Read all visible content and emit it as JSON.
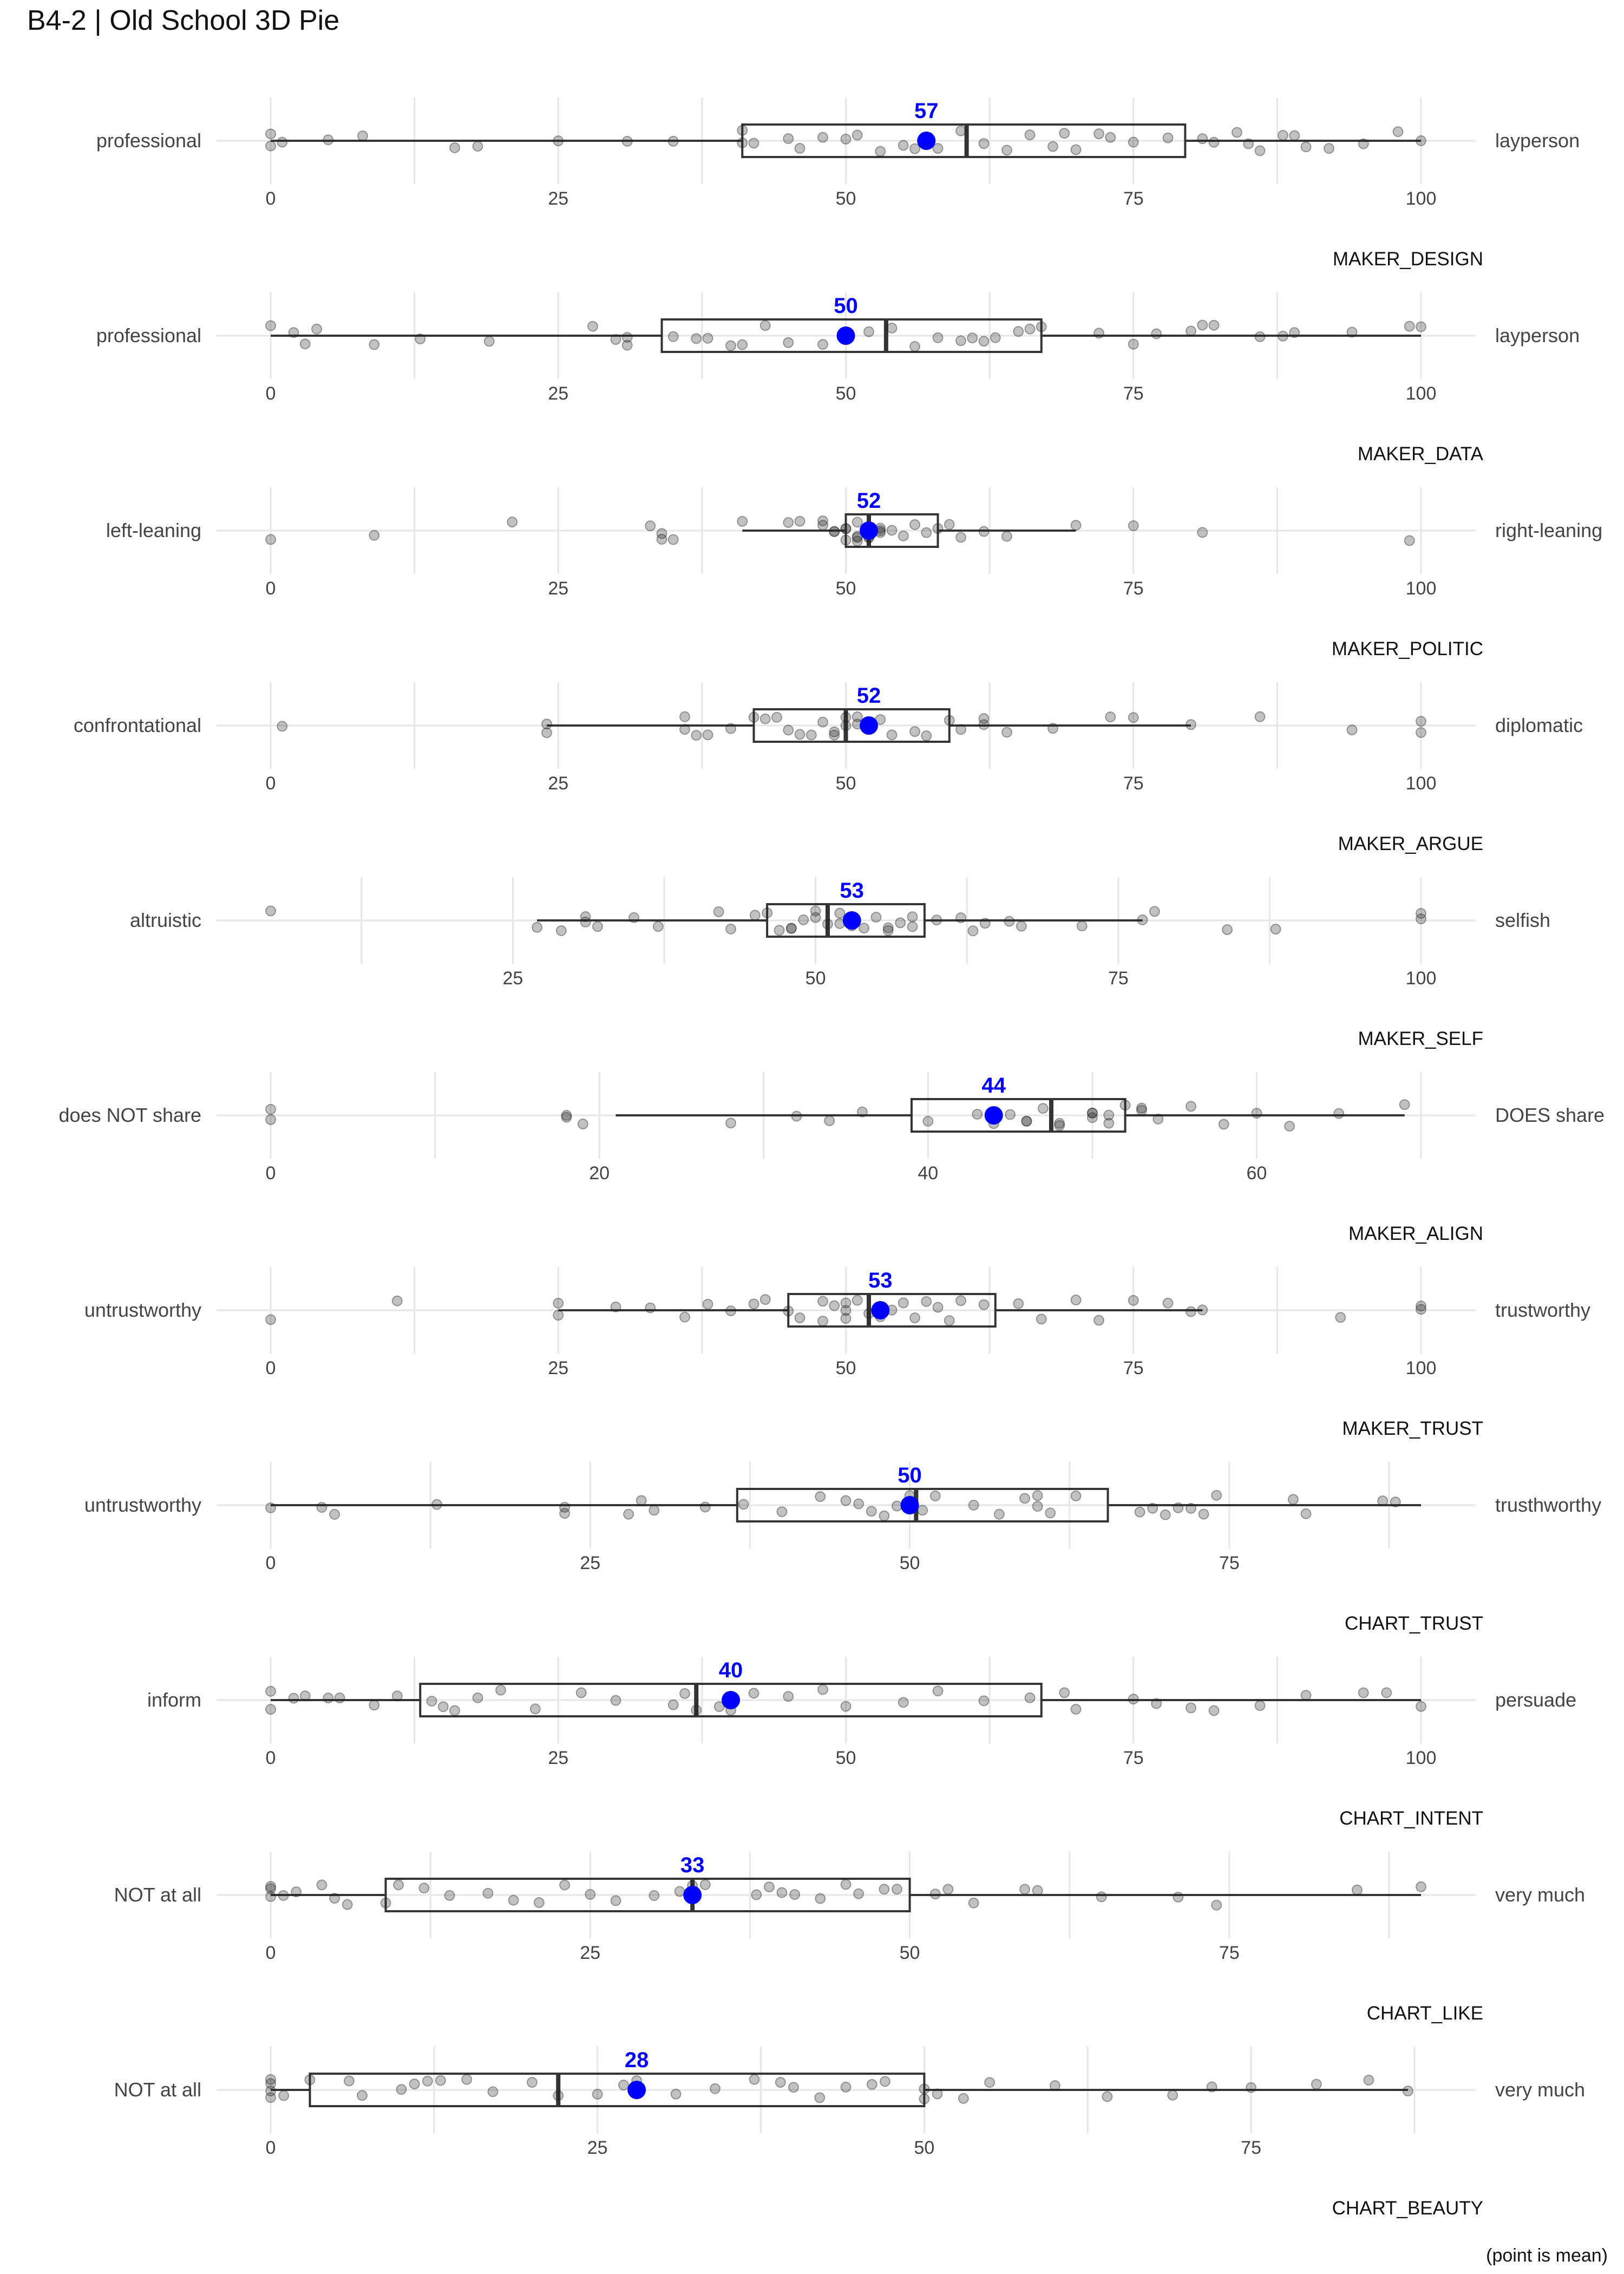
{
  "title": "B4-2 | Old School 3D Pie",
  "footnote": "(point is mean)",
  "colors": {
    "mean": "#0000ff",
    "box": "#333333",
    "point": "#222222",
    "grid": "#e6e6e6",
    "label": "#444444"
  },
  "chart_data": [
    {
      "type": "boxplot",
      "name": "MAKER_DESIGN",
      "left_label": "professional",
      "right_label": "layperson",
      "xlim": [
        0,
        100
      ],
      "ticks": [
        0,
        25,
        50,
        75,
        100
      ],
      "q1": 41,
      "median": 60.5,
      "q3": 79.5,
      "whisker_low": 0,
      "whisker_high": 100,
      "mean": 57,
      "mean_label": "57",
      "points": [
        0,
        0,
        1,
        5,
        8,
        16,
        18,
        25,
        31,
        35,
        41,
        41,
        42,
        45,
        46,
        48,
        50,
        51,
        53,
        55,
        56,
        58,
        60,
        62,
        64,
        66,
        68,
        69,
        70,
        72,
        73,
        75,
        78,
        81,
        82,
        84,
        85,
        86,
        88,
        89,
        90,
        92,
        95,
        98,
        100
      ]
    },
    {
      "type": "boxplot",
      "name": "MAKER_DATA",
      "left_label": "professional",
      "right_label": "layperson",
      "xlim": [
        0,
        100
      ],
      "ticks": [
        0,
        25,
        50,
        75,
        100
      ],
      "q1": 34,
      "median": 53.5,
      "q3": 67,
      "whisker_low": 0,
      "whisker_high": 100,
      "mean": 50,
      "mean_label": "50",
      "points": [
        0,
        2,
        3,
        4,
        9,
        13,
        19,
        28,
        30,
        31,
        31,
        35,
        37,
        38,
        40,
        41,
        43,
        45,
        48,
        52,
        54,
        56,
        58,
        60,
        61,
        62,
        63,
        65,
        66,
        67,
        72,
        75,
        77,
        80,
        81,
        82,
        86,
        88,
        89,
        94,
        99,
        100
      ]
    },
    {
      "type": "boxplot",
      "name": "MAKER_POLITIC",
      "left_label": "left-leaning",
      "right_label": "right-leaning",
      "xlim": [
        0,
        100
      ],
      "ticks": [
        0,
        25,
        50,
        75,
        100
      ],
      "q1": 50,
      "median": 52,
      "q3": 58,
      "whisker_low": 41,
      "whisker_high": 70,
      "mean": 52,
      "mean_label": "52",
      "points": [
        0,
        9,
        21,
        33,
        34,
        34,
        35,
        41,
        45,
        46,
        48,
        48,
        49,
        49,
        50,
        50,
        50,
        51,
        51,
        51,
        51,
        52,
        52,
        53,
        53,
        53,
        54,
        55,
        56,
        57,
        58,
        59,
        60,
        62,
        64,
        70,
        75,
        81,
        99
      ]
    },
    {
      "type": "boxplot",
      "name": "MAKER_ARGUE",
      "left_label": "confrontational",
      "right_label": "diplomatic",
      "xlim": [
        0,
        100
      ],
      "ticks": [
        0,
        25,
        50,
        75,
        100
      ],
      "q1": 42,
      "median": 50,
      "q3": 59,
      "whisker_low": 24,
      "whisker_high": 80,
      "mean": 52,
      "mean_label": "52",
      "points": [
        1,
        24,
        24,
        36,
        36,
        37,
        38,
        40,
        42,
        43,
        44,
        45,
        46,
        47,
        48,
        49,
        49,
        50,
        50,
        51,
        51,
        52,
        52,
        53,
        54,
        56,
        57,
        59,
        60,
        62,
        62,
        64,
        68,
        73,
        75,
        80,
        86,
        94,
        100,
        100
      ]
    },
    {
      "type": "boxplot",
      "name": "MAKER_SELF",
      "left_label": "altruistic",
      "right_label": "selfish",
      "xlim": [
        5,
        100
      ],
      "ticks": [
        25,
        50,
        75,
        100
      ],
      "q1": 46,
      "median": 51,
      "q3": 59,
      "whisker_low": 27,
      "whisker_high": 77,
      "mean": 53,
      "mean_label": "53",
      "points": [
        5,
        27,
        29,
        31,
        31,
        32,
        35,
        37,
        42,
        43,
        45,
        46,
        47,
        48,
        48,
        49,
        50,
        50,
        51,
        52,
        52,
        53,
        54,
        55,
        56,
        56,
        57,
        58,
        58,
        60,
        62,
        63,
        64,
        66,
        67,
        72,
        77,
        78,
        84,
        88,
        100,
        100
      ]
    },
    {
      "type": "boxplot",
      "name": "MAKER_ALIGN",
      "left_label": "does NOT share",
      "right_label": "DOES share",
      "xlim": [
        0,
        70
      ],
      "ticks": [
        0,
        20,
        40,
        60
      ],
      "q1": 39,
      "median": 47.5,
      "q3": 52,
      "whisker_low": 21,
      "whisker_high": 69,
      "mean": 44,
      "mean_label": "44",
      "points": [
        0,
        0,
        18,
        18,
        19,
        28,
        32,
        34,
        36,
        40,
        43,
        44,
        45,
        46,
        46,
        47,
        48,
        48,
        50,
        50,
        50,
        51,
        51,
        52,
        53,
        53,
        54,
        56,
        58,
        60,
        62,
        65,
        69
      ]
    },
    {
      "type": "boxplot",
      "name": "MAKER_TRUST",
      "left_label": "untrustworthy",
      "right_label": "trustworthy",
      "xlim": [
        0,
        100
      ],
      "ticks": [
        0,
        25,
        50,
        75,
        100
      ],
      "q1": 45,
      "median": 52,
      "q3": 63,
      "whisker_low": 25,
      "whisker_high": 81,
      "mean": 53,
      "mean_label": "53",
      "points": [
        0,
        11,
        25,
        25,
        30,
        33,
        36,
        38,
        40,
        42,
        43,
        45,
        46,
        48,
        48,
        49,
        50,
        50,
        50,
        51,
        52,
        53,
        54,
        55,
        56,
        57,
        58,
        59,
        60,
        62,
        65,
        67,
        70,
        72,
        75,
        78,
        80,
        81,
        93,
        100,
        100
      ]
    },
    {
      "type": "boxplot",
      "name": "CHART_TRUST",
      "left_label": "untrustworthy",
      "right_label": "trusthworthy",
      "xlim": [
        0,
        90
      ],
      "ticks": [
        0,
        25,
        50,
        75
      ],
      "q1": 36.5,
      "median": 50.5,
      "q3": 65.5,
      "whisker_low": 0,
      "whisker_high": 90,
      "mean": 50,
      "mean_label": "50",
      "points": [
        0,
        4,
        5,
        13,
        23,
        23,
        28,
        29,
        30,
        34,
        37,
        40,
        43,
        45,
        46,
        47,
        48,
        49,
        50,
        50,
        51,
        52,
        55,
        57,
        59,
        60,
        60,
        61,
        63,
        68,
        69,
        70,
        71,
        72,
        73,
        74,
        80,
        81,
        87,
        88
      ]
    },
    {
      "type": "boxplot",
      "name": "CHART_INTENT",
      "left_label": "inform",
      "right_label": "persuade",
      "xlim": [
        0,
        100
      ],
      "ticks": [
        0,
        25,
        50,
        75,
        100
      ],
      "q1": 13,
      "median": 37,
      "q3": 67,
      "whisker_low": 0,
      "whisker_high": 100,
      "mean": 40,
      "mean_label": "40",
      "points": [
        0,
        0,
        2,
        3,
        5,
        6,
        9,
        11,
        14,
        15,
        16,
        18,
        20,
        23,
        27,
        30,
        35,
        36,
        37,
        39,
        40,
        42,
        45,
        48,
        50,
        55,
        58,
        62,
        66,
        69,
        70,
        75,
        77,
        80,
        82,
        86,
        90,
        95,
        97,
        100
      ]
    },
    {
      "type": "boxplot",
      "name": "CHART_LIKE",
      "left_label": "NOT at all",
      "right_label": "very much",
      "xlim": [
        0,
        90
      ],
      "ticks": [
        0,
        25,
        50,
        75
      ],
      "q1": 9,
      "median": 33,
      "q3": 50,
      "whisker_low": 0,
      "whisker_high": 90,
      "mean": 33,
      "mean_label": "33",
      "points": [
        0,
        0,
        0,
        1,
        2,
        4,
        5,
        6,
        9,
        10,
        12,
        14,
        17,
        19,
        21,
        23,
        25,
        27,
        30,
        32,
        33,
        34,
        38,
        39,
        40,
        41,
        43,
        45,
        46,
        48,
        49,
        52,
        53,
        55,
        59,
        60,
        65,
        71,
        74,
        85,
        90
      ]
    },
    {
      "type": "boxplot",
      "name": "CHART_BEAUTY",
      "left_label": "NOT at all",
      "right_label": "very much",
      "xlim": [
        0,
        88
      ],
      "ticks": [
        0,
        25,
        50,
        75
      ],
      "q1": 3,
      "median": 22,
      "q3": 50,
      "whisker_low": 0,
      "whisker_high": 87,
      "mean": 28,
      "mean_label": "28",
      "points": [
        0,
        0,
        0,
        0,
        1,
        3,
        6,
        7,
        10,
        11,
        12,
        13,
        15,
        17,
        20,
        22,
        25,
        27,
        28,
        31,
        34,
        37,
        39,
        40,
        42,
        44,
        46,
        47,
        50,
        50,
        51,
        53,
        55,
        60,
        64,
        69,
        72,
        75,
        80,
        84,
        87
      ]
    }
  ]
}
